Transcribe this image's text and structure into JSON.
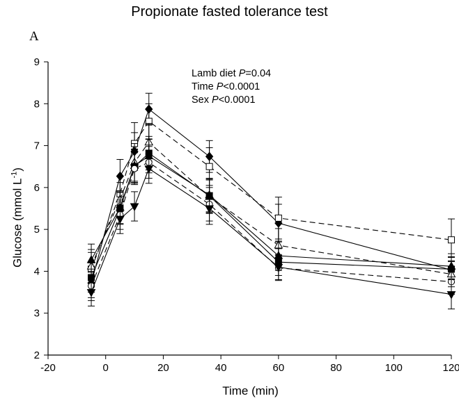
{
  "chart_data": {
    "type": "line",
    "title": "Propionate fasted tolerance test",
    "panel_label": "A",
    "xlabel": "Time (min)",
    "ylabel": "Glucose (mmol L",
    "ylabel_sup": "-1",
    "ylabel_close": ")",
    "xlim": [
      -20,
      120
    ],
    "ylim": [
      2,
      9
    ],
    "x_ticks": [
      -20,
      0,
      20,
      40,
      60,
      80,
      100,
      120
    ],
    "y_ticks": [
      2,
      3,
      4,
      5,
      6,
      7,
      8,
      9
    ],
    "grid": false,
    "stats": [
      {
        "label": "Lamb diet ",
        "italic": "P",
        "value": "=0.04"
      },
      {
        "label": "Time ",
        "italic": "P",
        "value": "<0.0001"
      },
      {
        "label": "Sex ",
        "italic": "P",
        "value": "<0.0001"
      }
    ],
    "x": [
      -5,
      5,
      10,
      15,
      36,
      60,
      120
    ],
    "series": [
      {
        "marker": "diamond",
        "filled": true,
        "dashed": false,
        "values": [
          3.72,
          6.27,
          6.86,
          7.87,
          6.74,
          5.15,
          4.03
        ],
        "errors": [
          0.35,
          0.4,
          0.45,
          0.38,
          0.38,
          0.45,
          0.3
        ]
      },
      {
        "marker": "square",
        "filled": false,
        "dashed": true,
        "values": [
          4.05,
          5.85,
          7.05,
          7.58,
          6.5,
          5.27,
          4.75
        ],
        "errors": [
          0.4,
          0.42,
          0.5,
          0.42,
          0.45,
          0.5,
          0.5
        ]
      },
      {
        "marker": "triangle-up",
        "filled": false,
        "dashed": true,
        "values": [
          4.12,
          5.72,
          6.6,
          7.08,
          5.78,
          4.62,
          3.93
        ],
        "errors": [
          0.4,
          0.4,
          0.45,
          0.45,
          0.4,
          0.4,
          0.3
        ]
      },
      {
        "marker": "triangle-up",
        "filled": true,
        "dashed": false,
        "values": [
          4.27,
          5.52,
          6.52,
          6.75,
          5.82,
          4.37,
          4.12
        ],
        "errors": [
          0.38,
          0.38,
          0.4,
          0.4,
          0.4,
          0.35,
          0.3
        ]
      },
      {
        "marker": "square",
        "filled": true,
        "dashed": false,
        "values": [
          3.85,
          5.5,
          6.5,
          6.82,
          5.8,
          4.22,
          4.05
        ],
        "errors": [
          0.35,
          0.38,
          0.4,
          0.4,
          0.4,
          0.32,
          0.3
        ]
      },
      {
        "marker": "circle",
        "filled": false,
        "dashed": true,
        "values": [
          3.65,
          5.35,
          6.45,
          6.6,
          5.6,
          4.08,
          3.75
        ],
        "errors": [
          0.35,
          0.35,
          0.38,
          0.38,
          0.4,
          0.3,
          0.3
        ]
      },
      {
        "marker": "triangle-down",
        "filled": true,
        "dashed": false,
        "values": [
          3.5,
          5.25,
          5.55,
          6.45,
          5.5,
          4.1,
          3.45
        ],
        "errors": [
          0.33,
          0.35,
          0.35,
          0.35,
          0.38,
          0.3,
          0.35
        ]
      }
    ]
  }
}
